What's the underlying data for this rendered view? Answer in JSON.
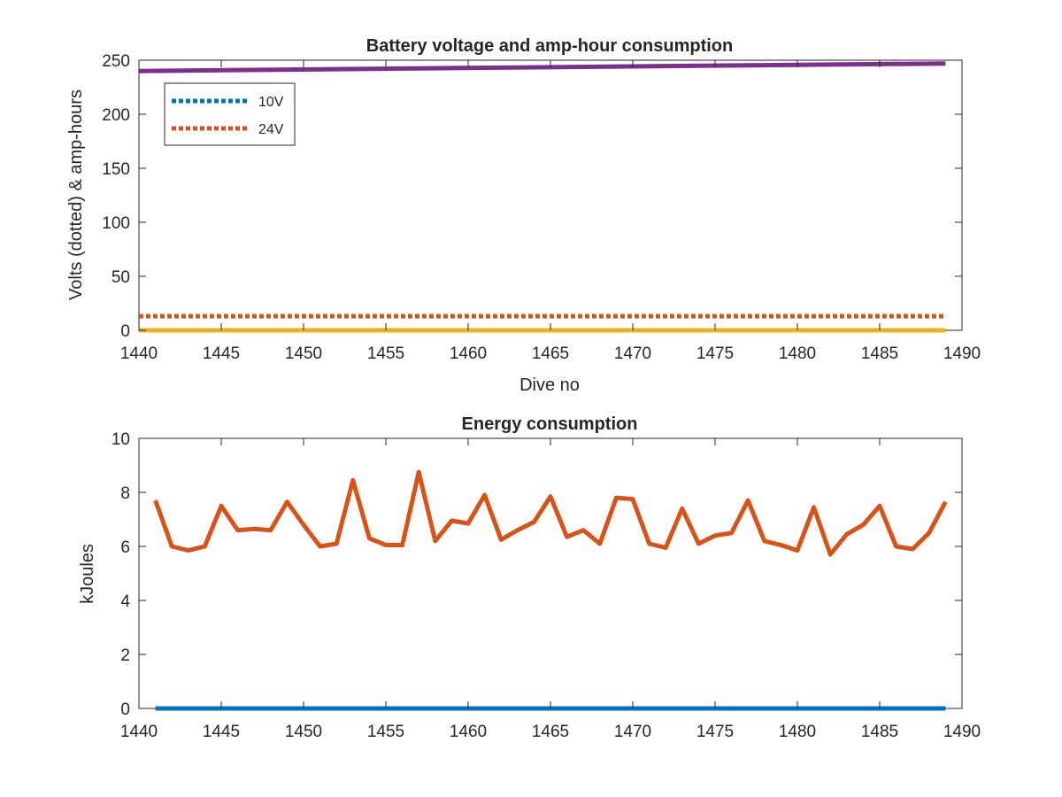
{
  "colors": {
    "blue": "#0072BD",
    "orange": "#D95319",
    "yellow": "#EDB120",
    "purple": "#7E2F8E",
    "axis": "#262626",
    "background": "#ffffff"
  },
  "chart_data": [
    {
      "type": "line",
      "title": "Battery voltage and amp-hour consumption",
      "xlabel": "Dive no",
      "ylabel": "Volts (dotted) & amp-hours",
      "xlim": [
        1440,
        1490
      ],
      "ylim": [
        0,
        250
      ],
      "xticks": [
        1440,
        1445,
        1450,
        1455,
        1460,
        1465,
        1470,
        1475,
        1480,
        1485,
        1490
      ],
      "yticks": [
        0,
        50,
        100,
        150,
        200,
        250
      ],
      "grid": false,
      "legend_location": "top-left",
      "series": [
        {
          "name": "10V",
          "style": "dotted",
          "color": "#0072BD",
          "x": [
            1440,
            1489
          ],
          "y": [
            0,
            0
          ]
        },
        {
          "name": "24V",
          "style": "dotted",
          "color": "#D95319",
          "x": [
            1440,
            1489
          ],
          "y": [
            13,
            13
          ]
        },
        {
          "style": "solid",
          "color": "#EDB120",
          "x": [
            1440,
            1489
          ],
          "y": [
            0,
            0
          ]
        },
        {
          "style": "solid",
          "color": "#7E2F8E",
          "x": [
            1440,
            1489
          ],
          "y": [
            240,
            247
          ]
        }
      ]
    },
    {
      "type": "line",
      "title": "Energy consumption",
      "xlabel": "",
      "ylabel": "kJoules",
      "xlim": [
        1440,
        1490
      ],
      "ylim": [
        0,
        10
      ],
      "xticks": [
        1440,
        1445,
        1450,
        1455,
        1460,
        1465,
        1470,
        1475,
        1480,
        1485,
        1490
      ],
      "yticks": [
        0,
        2,
        4,
        6,
        8,
        10
      ],
      "grid": false,
      "series": [
        {
          "style": "solid",
          "color": "#D95319",
          "x": [
            1441,
            1442,
            1443,
            1444,
            1445,
            1446,
            1447,
            1448,
            1449,
            1450,
            1451,
            1452,
            1453,
            1454,
            1455,
            1456,
            1457,
            1458,
            1459,
            1460,
            1461,
            1462,
            1463,
            1464,
            1465,
            1466,
            1467,
            1468,
            1469,
            1470,
            1471,
            1472,
            1473,
            1474,
            1475,
            1476,
            1477,
            1478,
            1479,
            1480,
            1481,
            1482,
            1483,
            1484,
            1485,
            1486,
            1487,
            1488,
            1489
          ],
          "y": [
            7.7,
            6.0,
            5.85,
            6.0,
            7.5,
            6.6,
            6.65,
            6.6,
            7.65,
            6.8,
            6.0,
            6.1,
            8.45,
            6.3,
            6.05,
            6.05,
            8.75,
            6.2,
            6.95,
            6.85,
            7.9,
            6.25,
            6.6,
            6.9,
            7.85,
            6.35,
            6.6,
            6.1,
            7.8,
            7.75,
            6.1,
            5.95,
            7.4,
            6.1,
            6.4,
            6.5,
            7.7,
            6.2,
            6.05,
            5.85,
            7.45,
            5.7,
            6.45,
            6.8,
            7.5,
            6.0,
            5.9,
            6.5,
            7.65
          ]
        },
        {
          "style": "solid",
          "color": "#0072BD",
          "x": [
            1441,
            1489
          ],
          "y": [
            0,
            0
          ]
        }
      ]
    }
  ]
}
